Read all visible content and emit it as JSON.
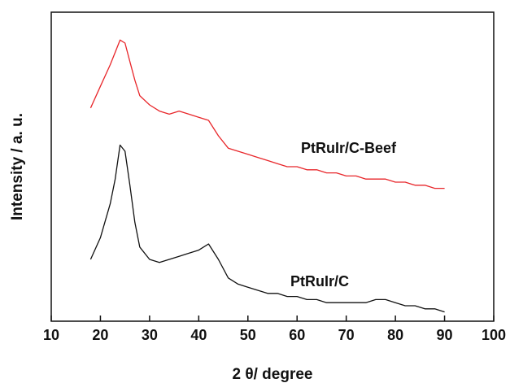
{
  "chart_data": {
    "type": "line",
    "x_label": "2 θ/ degree",
    "y_label": "Intensity / a. u.",
    "x": [
      18,
      20,
      22,
      23,
      24,
      25,
      26,
      27,
      28,
      30,
      32,
      34,
      36,
      38,
      40,
      42,
      44,
      46,
      48,
      50,
      52,
      54,
      56,
      58,
      60,
      62,
      64,
      66,
      68,
      70,
      72,
      74,
      76,
      78,
      80,
      82,
      84,
      86,
      88,
      90
    ],
    "series": [
      {
        "name": "PtRuIr/C-Beef",
        "color": "#e8262a",
        "values": [
          69,
          76,
          83,
          87,
          91,
          90,
          84,
          78,
          73,
          70,
          68,
          67,
          68,
          67,
          66,
          65,
          60,
          56,
          55,
          54,
          53,
          52,
          51,
          50,
          50,
          49,
          49,
          48,
          48,
          47,
          47,
          46,
          46,
          46,
          45,
          45,
          44,
          44,
          43,
          43
        ]
      },
      {
        "name": "PtRuIr/C",
        "color": "#111111",
        "values": [
          20,
          27,
          38,
          46,
          57,
          55,
          44,
          32,
          24,
          20,
          19,
          20,
          21,
          22,
          23,
          25,
          20,
          14,
          12,
          11,
          10,
          9,
          9,
          8,
          8,
          7,
          7,
          6,
          6,
          6,
          6,
          6,
          7,
          7,
          6,
          5,
          5,
          4,
          4,
          3
        ]
      }
    ],
    "xlim": [
      10,
      100
    ],
    "xticks": [
      10,
      20,
      30,
      40,
      50,
      60,
      70,
      80,
      90,
      100
    ],
    "ylim": [
      0,
      100
    ]
  }
}
